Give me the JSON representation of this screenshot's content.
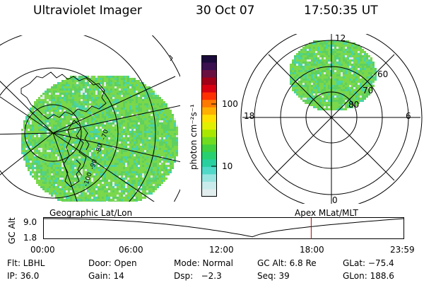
{
  "header": {
    "instrument": "Ultraviolet Imager",
    "date": "30 Oct 07",
    "time": "17:50:35 UT"
  },
  "colorbar": {
    "label": "photon cm⁻²s⁻¹",
    "tick_labels": [
      "100",
      "10"
    ],
    "colors": [
      "#1a0a3a",
      "#3a1050",
      "#6a1040",
      "#a00018",
      "#d80010",
      "#ff3000",
      "#ff7a00",
      "#ffb000",
      "#ffe000",
      "#e0f000",
      "#a8e800",
      "#70dc20",
      "#40d040",
      "#28d070",
      "#28d0a0",
      "#50d8c8",
      "#98e4e0",
      "#c8ecec",
      "#e2eded"
    ]
  },
  "left_map": {
    "label": "Geographic Lat/Lon",
    "longitude_labels": [
      "-100",
      "-90",
      "-80",
      "-70"
    ]
  },
  "right_map": {
    "label": "Apex MLat/MLT",
    "mlt_labels": {
      "top": "12",
      "left": "18",
      "right": "6",
      "bottom": "0"
    },
    "mlat_labels": [
      "60",
      "70",
      "80"
    ]
  },
  "timeline": {
    "ylabel": "GC Alt",
    "y_ticks": [
      "9.0",
      "1.8"
    ],
    "x_ticks": [
      "00:00",
      "06:00",
      "12:00",
      "18:00",
      "23:59"
    ],
    "current_time_hours": 17.84
  },
  "info": {
    "row1": {
      "filter": "Flt: LBHL",
      "door": "Door: Open",
      "mode": "Mode: Normal",
      "gc_alt": "GC Alt: 6.8 Re",
      "glat": "GLat: −75.4"
    },
    "row2": {
      "ip": "IP: 36.0",
      "gain": "Gain: 14",
      "dsp": "Dsp:   −2.3",
      "seq": "Seq: 39",
      "glon": "GLon: 188.6"
    }
  }
}
